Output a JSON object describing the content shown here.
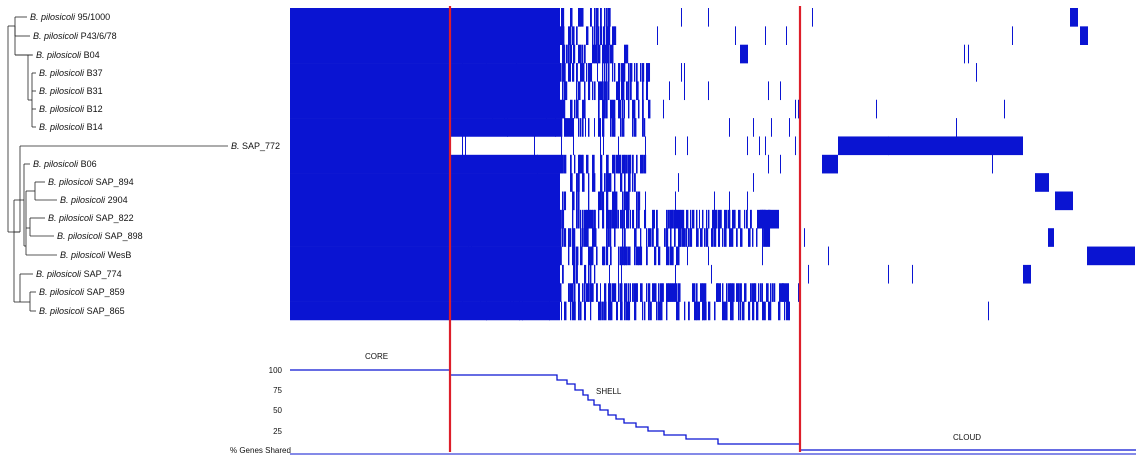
{
  "strains": [
    {
      "genus": "B.",
      "species": "pilosicoli",
      "id": "95/1000"
    },
    {
      "genus": "B.",
      "species": "pilosicoli",
      "id": "P43/6/78"
    },
    {
      "genus": "B.",
      "species": "pilosicoli",
      "id": "B04"
    },
    {
      "genus": "B.",
      "species": "pilosicoli",
      "id": "B37"
    },
    {
      "genus": "B.",
      "species": "pilosicoli",
      "id": "B31"
    },
    {
      "genus": "B.",
      "species": "pilosicoli",
      "id": "B12"
    },
    {
      "genus": "B.",
      "species": "pilosicoli",
      "id": "B14"
    },
    {
      "genus": "B.",
      "species": "",
      "id": "SAP_772"
    },
    {
      "genus": "B.",
      "species": "pilosicoli",
      "id": "B06"
    },
    {
      "genus": "B.",
      "species": "pilosicoli",
      "id": "SAP_894"
    },
    {
      "genus": "B.",
      "species": "pilosicoli",
      "id": "2904"
    },
    {
      "genus": "B.",
      "species": "pilosicoli",
      "id": "SAP_822"
    },
    {
      "genus": "B.",
      "species": "pilosicoli",
      "id": "SAP_898"
    },
    {
      "genus": "B.",
      "species": "pilosicoli",
      "id": "WesB"
    },
    {
      "genus": "B.",
      "species": "pilosicoli",
      "id": "SAP_774"
    },
    {
      "genus": "B.",
      "species": "pilosicoli",
      "id": "SAP_859"
    },
    {
      "genus": "B.",
      "species": "pilosicoli",
      "id": "SAP_865"
    }
  ],
  "regions": {
    "core": "CORE",
    "shell": "SHELL",
    "cloud": "CLOUD"
  },
  "profile": {
    "ylabel": "% Genes Shared",
    "yticks": [
      "100",
      "75",
      "50",
      "25"
    ]
  },
  "colors": {
    "presence": "#0a14d2",
    "boundary": "#dd1f2a",
    "tree": "#222222"
  }
}
